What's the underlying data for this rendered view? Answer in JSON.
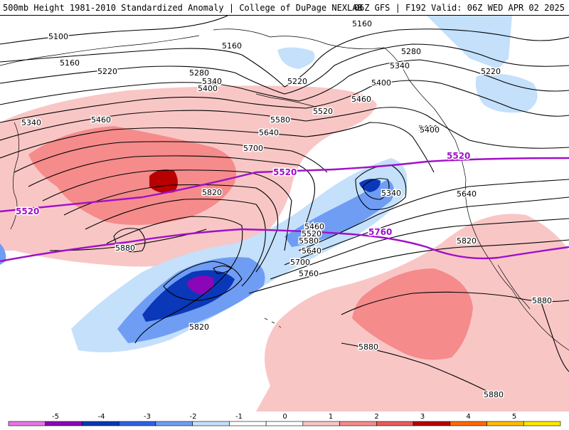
{
  "header": {
    "left_title": "500mb Height 1981-2010 Standardized Anomaly | College of DuPage NEXLAB",
    "right_title": "06Z GFS | F192 Valid: 06Z WED APR 02 2025"
  },
  "colors": {
    "anomaly_scale": [
      "#e477e4",
      "#8b06b8",
      "#0a38b8",
      "#2e62e6",
      "#6f9df4",
      "#c4e0fb",
      "#ffffff",
      "#ffffff",
      "#f9c6c6",
      "#f58b8b",
      "#e85b5b",
      "#b80000",
      "#ff6a00",
      "#ffbd00",
      "#ffe800"
    ],
    "height_contour": "#000000",
    "highlight_contour": "#a010c8",
    "coastline": "#000000"
  },
  "map": {
    "contour_labels": [
      "5100",
      "5160",
      "5160",
      "5160",
      "5220",
      "5220",
      "5220",
      "5280",
      "5280",
      "5340",
      "5340",
      "5340",
      "5400",
      "5400",
      "5400",
      "5460",
      "5460",
      "5460",
      "5520",
      "5520",
      "5580",
      "5580",
      "5640",
      "5640",
      "5640",
      "5700",
      "5700",
      "5760",
      "5820",
      "5820",
      "5820",
      "5880",
      "5880",
      "5880",
      "5880"
    ],
    "highlight_labels": [
      "5520",
      "5520",
      "5520",
      "5760"
    ]
  },
  "colorbar": {
    "tick_labels": [
      "-5",
      "-4",
      "-3",
      "-2",
      "-1",
      "0",
      "1",
      "2",
      "3",
      "4",
      "5"
    ]
  }
}
